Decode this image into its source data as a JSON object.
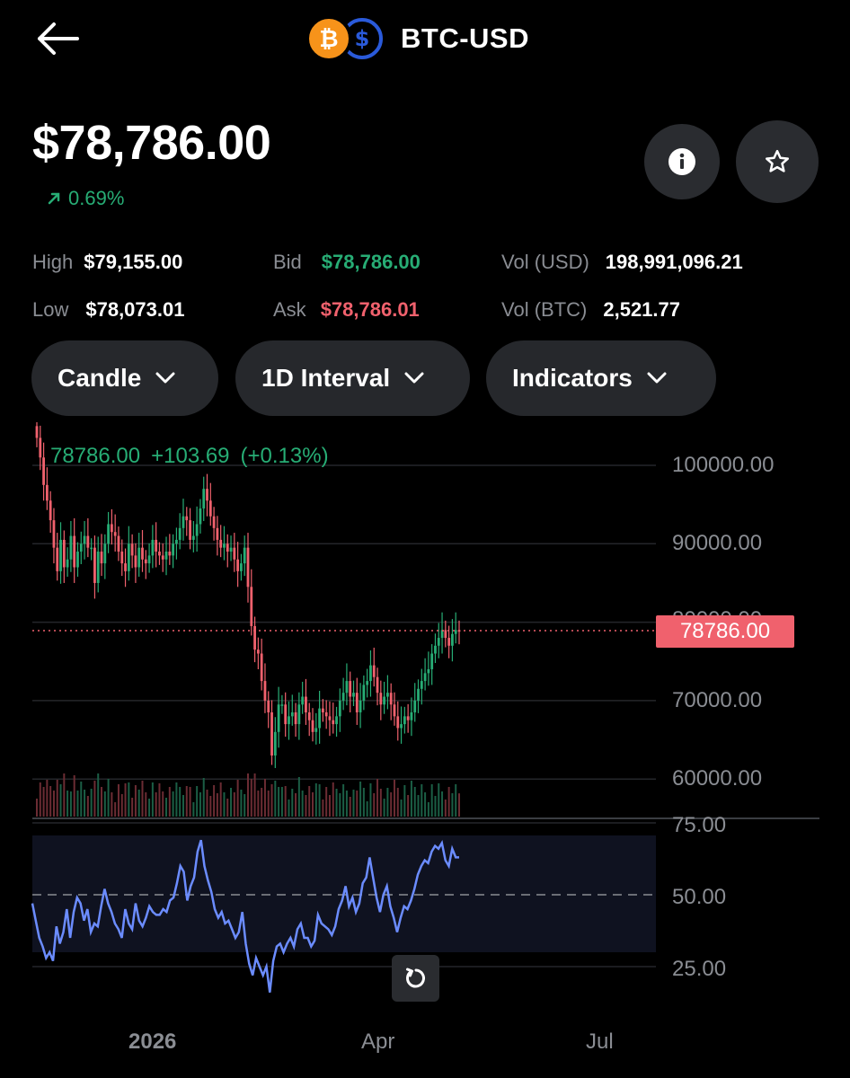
{
  "header": {
    "title": "BTC-USD",
    "btc_symbol": "₿",
    "usd_symbol": "$"
  },
  "price": "$78,786.00",
  "change": "0.69%",
  "stats": {
    "high_label": "High",
    "high_value": "$79,155.00",
    "low_label": "Low",
    "low_value": "$78,073.01",
    "bid_label": "Bid",
    "bid_value": "$78,786.00",
    "ask_label": "Ask",
    "ask_value": "$78,786.01",
    "vol_usd_label": "Vol (USD)",
    "vol_usd_value": "198,991,096.21",
    "vol_btc_label": "Vol (BTC)",
    "vol_btc_value": "2,521.77"
  },
  "controls": {
    "chart_type": "Candle",
    "interval": "1D Interval",
    "indicators": "Indicators"
  },
  "chart": {
    "overlay_price": "78786.00",
    "overlay_change": "+103.69",
    "overlay_pct": "(+0.13%)",
    "price_tag": "78786.00",
    "y_labels": [
      "100000.00",
      "90000.00",
      "80000.00",
      "70000.00",
      "60000.00"
    ],
    "rsi_labels": [
      "75.00",
      "50.00",
      "25.00"
    ],
    "x_labels": [
      "2026",
      "Apr",
      "Jul"
    ]
  },
  "chart_data": {
    "type": "candlestick",
    "price_axis": {
      "ylim": [
        55000,
        105000
      ],
      "ticks": [
        100000,
        90000,
        80000,
        70000,
        60000
      ]
    },
    "last_price": 78786,
    "close_series": [
      103500,
      101000,
      97500,
      95500,
      93000,
      89500,
      86500,
      90500,
      87000,
      88000,
      91000,
      87000,
      89000,
      90000,
      91000,
      89500,
      89500,
      85000,
      89000,
      87500,
      90000,
      92500,
      91500,
      91000,
      89000,
      87500,
      86500,
      90000,
      88500,
      87000,
      89500,
      88000,
      87500,
      88500,
      90500,
      89000,
      88500,
      88000,
      89000,
      88500,
      90000,
      90500,
      92000,
      93500,
      93000,
      90500,
      91000,
      92500,
      94500,
      97000,
      95500,
      93500,
      92000,
      90500,
      89500,
      90000,
      89000,
      89500,
      88000,
      86500,
      87500,
      89500,
      84500,
      79500,
      76500,
      76000,
      72500,
      70000,
      68500,
      63000,
      66000,
      69500,
      69500,
      67000,
      68000,
      68500,
      67000,
      69500,
      70500,
      68500,
      67500,
      66000,
      66500,
      69000,
      68500,
      68000,
      67500,
      67000,
      68000,
      70000,
      71000,
      72500,
      70500,
      71000,
      68500,
      70000,
      72000,
      72500,
      74500,
      73000,
      71000,
      69500,
      70500,
      71000,
      69500,
      68000,
      66500,
      67000,
      68000,
      67500,
      68500,
      70000,
      71500,
      72500,
      73500,
      74000,
      76000,
      77000,
      78000,
      79000,
      78000,
      77000,
      78500,
      79000,
      78786
    ],
    "rsi": {
      "levels": [
        75,
        50,
        25
      ],
      "band": [
        30,
        70
      ],
      "values": [
        47,
        41,
        35,
        32,
        28,
        30,
        27,
        39,
        33,
        37,
        45,
        35,
        44,
        49,
        47,
        41,
        45,
        37,
        40,
        39,
        46,
        52,
        47,
        44,
        40,
        38,
        35,
        45,
        40,
        38,
        47,
        41,
        39,
        42,
        46,
        44,
        43,
        43,
        45,
        44,
        48,
        49,
        54,
        60,
        58,
        48,
        53,
        56,
        65,
        69,
        60,
        55,
        51,
        45,
        42,
        44,
        40,
        41,
        38,
        35,
        37,
        44,
        33,
        26,
        22,
        28,
        25,
        22,
        25,
        16,
        27,
        32,
        33,
        30,
        33,
        35,
        32,
        38,
        40,
        35,
        35,
        32,
        34,
        43,
        40,
        39,
        38,
        36,
        39,
        45,
        48,
        53,
        46,
        49,
        44,
        47,
        54,
        56,
        63,
        56,
        49,
        44,
        50,
        53,
        46,
        42,
        37,
        42,
        46,
        45,
        48,
        52,
        57,
        60,
        62,
        61,
        65,
        67,
        66,
        68,
        62,
        60,
        66,
        63,
        63
      ]
    },
    "x_ticks": [
      "2026",
      "Apr",
      "Jul"
    ]
  }
}
